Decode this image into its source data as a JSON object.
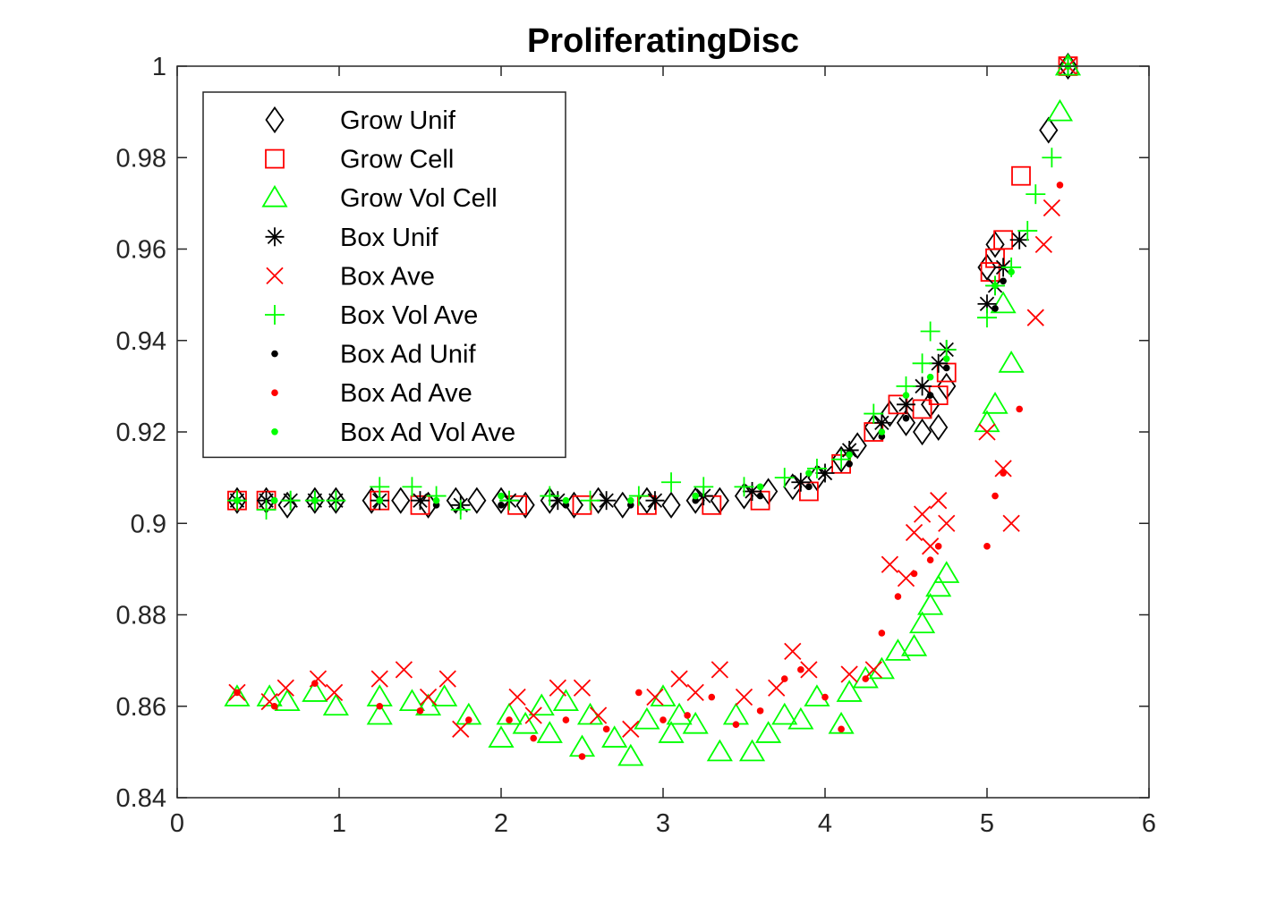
{
  "chart_data": {
    "type": "scatter",
    "title": "ProliferatingDisc",
    "xlabel": "",
    "ylabel": "",
    "xlim": [
      0,
      6
    ],
    "ylim": [
      0.84,
      1
    ],
    "xticks": [
      0,
      1,
      2,
      3,
      4,
      5,
      6
    ],
    "yticks": [
      0.84,
      0.86,
      0.88,
      0.9,
      0.92,
      0.94,
      0.96,
      0.98,
      1
    ],
    "xtick_labels": [
      "0",
      "1",
      "2",
      "3",
      "4",
      "5",
      "6"
    ],
    "ytick_labels": [
      "0.84",
      "0.86",
      "0.88",
      "0.9",
      "0.92",
      "0.94",
      "0.96",
      "0.98",
      "1"
    ],
    "grid": false,
    "legend_position": "top-left",
    "series": [
      {
        "name": "Grow Unif",
        "marker": "diamond",
        "color": "#000000",
        "points": [
          [
            0.37,
            0.905
          ],
          [
            0.55,
            0.905
          ],
          [
            0.68,
            0.904
          ],
          [
            0.85,
            0.905
          ],
          [
            0.98,
            0.905
          ],
          [
            1.2,
            0.905
          ],
          [
            1.38,
            0.905
          ],
          [
            1.55,
            0.904
          ],
          [
            1.72,
            0.905
          ],
          [
            1.85,
            0.905
          ],
          [
            2.0,
            0.905
          ],
          [
            2.15,
            0.904
          ],
          [
            2.3,
            0.905
          ],
          [
            2.45,
            0.904
          ],
          [
            2.6,
            0.905
          ],
          [
            2.75,
            0.904
          ],
          [
            2.9,
            0.905
          ],
          [
            3.05,
            0.904
          ],
          [
            3.2,
            0.905
          ],
          [
            3.35,
            0.905
          ],
          [
            3.5,
            0.906
          ],
          [
            3.65,
            0.907
          ],
          [
            3.8,
            0.908
          ],
          [
            3.95,
            0.91
          ],
          [
            4.1,
            0.914
          ],
          [
            4.2,
            0.917
          ],
          [
            4.3,
            0.921
          ],
          [
            4.4,
            0.924
          ],
          [
            4.5,
            0.922
          ],
          [
            4.6,
            0.92
          ],
          [
            4.7,
            0.921
          ],
          [
            4.65,
            0.926
          ],
          [
            4.75,
            0.93
          ],
          [
            5.0,
            0.956
          ],
          [
            5.05,
            0.961
          ],
          [
            5.38,
            0.986
          ],
          [
            5.5,
            1.0
          ]
        ]
      },
      {
        "name": "Grow Cell",
        "marker": "square",
        "color": "#ff0000",
        "points": [
          [
            0.37,
            0.905
          ],
          [
            0.55,
            0.905
          ],
          [
            1.25,
            0.905
          ],
          [
            1.5,
            0.904
          ],
          [
            2.1,
            0.904
          ],
          [
            2.5,
            0.904
          ],
          [
            2.9,
            0.904
          ],
          [
            3.3,
            0.904
          ],
          [
            3.6,
            0.905
          ],
          [
            3.9,
            0.907
          ],
          [
            4.1,
            0.913
          ],
          [
            4.3,
            0.92
          ],
          [
            4.45,
            0.926
          ],
          [
            4.6,
            0.925
          ],
          [
            4.7,
            0.928
          ],
          [
            4.75,
            0.933
          ],
          [
            5.02,
            0.955
          ],
          [
            5.05,
            0.958
          ],
          [
            5.1,
            0.962
          ],
          [
            5.21,
            0.976
          ],
          [
            5.5,
            1.0
          ]
        ]
      },
      {
        "name": "Grow Vol Cell",
        "marker": "triangle",
        "color": "#00ff00",
        "points": [
          [
            0.37,
            0.862
          ],
          [
            0.57,
            0.862
          ],
          [
            0.68,
            0.861
          ],
          [
            0.85,
            0.863
          ],
          [
            0.98,
            0.86
          ],
          [
            1.25,
            0.858
          ],
          [
            1.25,
            0.862
          ],
          [
            1.45,
            0.861
          ],
          [
            1.55,
            0.86
          ],
          [
            1.65,
            0.862
          ],
          [
            1.8,
            0.858
          ],
          [
            2.0,
            0.853
          ],
          [
            2.05,
            0.858
          ],
          [
            2.15,
            0.856
          ],
          [
            2.25,
            0.86
          ],
          [
            2.3,
            0.854
          ],
          [
            2.4,
            0.861
          ],
          [
            2.5,
            0.851
          ],
          [
            2.55,
            0.858
          ],
          [
            2.7,
            0.853
          ],
          [
            2.8,
            0.849
          ],
          [
            2.9,
            0.857
          ],
          [
            3.0,
            0.862
          ],
          [
            3.05,
            0.854
          ],
          [
            3.1,
            0.858
          ],
          [
            3.2,
            0.856
          ],
          [
            3.35,
            0.85
          ],
          [
            3.45,
            0.858
          ],
          [
            3.55,
            0.85
          ],
          [
            3.65,
            0.854
          ],
          [
            3.75,
            0.858
          ],
          [
            3.85,
            0.857
          ],
          [
            3.95,
            0.862
          ],
          [
            4.1,
            0.856
          ],
          [
            4.15,
            0.863
          ],
          [
            4.25,
            0.866
          ],
          [
            4.35,
            0.868
          ],
          [
            4.45,
            0.872
          ],
          [
            4.55,
            0.873
          ],
          [
            4.6,
            0.878
          ],
          [
            4.65,
            0.882
          ],
          [
            4.7,
            0.886
          ],
          [
            4.75,
            0.889
          ],
          [
            5.0,
            0.922
          ],
          [
            5.05,
            0.926
          ],
          [
            5.1,
            0.948
          ],
          [
            5.15,
            0.935
          ],
          [
            5.45,
            0.99
          ],
          [
            5.5,
            1.0
          ]
        ]
      },
      {
        "name": "Box Unif",
        "marker": "asterisk",
        "color": "#000000",
        "points": [
          [
            0.37,
            0.905
          ],
          [
            0.55,
            0.905
          ],
          [
            0.7,
            0.905
          ],
          [
            0.85,
            0.905
          ],
          [
            0.98,
            0.905
          ],
          [
            1.25,
            0.905
          ],
          [
            1.5,
            0.905
          ],
          [
            1.75,
            0.904
          ],
          [
            2.05,
            0.905
          ],
          [
            2.35,
            0.905
          ],
          [
            2.65,
            0.905
          ],
          [
            2.95,
            0.905
          ],
          [
            3.25,
            0.906
          ],
          [
            3.55,
            0.907
          ],
          [
            3.85,
            0.909
          ],
          [
            4.0,
            0.911
          ],
          [
            4.15,
            0.916
          ],
          [
            4.35,
            0.922
          ],
          [
            4.5,
            0.926
          ],
          [
            4.6,
            0.93
          ],
          [
            4.7,
            0.935
          ],
          [
            4.75,
            0.938
          ],
          [
            5.0,
            0.948
          ],
          [
            5.05,
            0.952
          ],
          [
            5.1,
            0.956
          ],
          [
            5.2,
            0.962
          ],
          [
            5.5,
            1.0
          ]
        ]
      },
      {
        "name": "Box Ave",
        "marker": "x",
        "color": "#ff0000",
        "points": [
          [
            0.37,
            0.863
          ],
          [
            0.57,
            0.861
          ],
          [
            0.67,
            0.864
          ],
          [
            0.87,
            0.866
          ],
          [
            0.97,
            0.863
          ],
          [
            1.25,
            0.866
          ],
          [
            1.4,
            0.868
          ],
          [
            1.55,
            0.862
          ],
          [
            1.67,
            0.866
          ],
          [
            1.75,
            0.855
          ],
          [
            2.1,
            0.862
          ],
          [
            2.2,
            0.858
          ],
          [
            2.35,
            0.864
          ],
          [
            2.5,
            0.864
          ],
          [
            2.6,
            0.858
          ],
          [
            2.8,
            0.855
          ],
          [
            2.95,
            0.862
          ],
          [
            3.1,
            0.866
          ],
          [
            3.2,
            0.863
          ],
          [
            3.35,
            0.868
          ],
          [
            3.5,
            0.862
          ],
          [
            3.7,
            0.864
          ],
          [
            3.8,
            0.872
          ],
          [
            3.9,
            0.868
          ],
          [
            4.15,
            0.867
          ],
          [
            4.3,
            0.868
          ],
          [
            4.4,
            0.891
          ],
          [
            4.5,
            0.888
          ],
          [
            4.55,
            0.898
          ],
          [
            4.6,
            0.902
          ],
          [
            4.65,
            0.895
          ],
          [
            4.7,
            0.905
          ],
          [
            4.75,
            0.9
          ],
          [
            5.0,
            0.92
          ],
          [
            5.1,
            0.912
          ],
          [
            5.15,
            0.9
          ],
          [
            5.3,
            0.945
          ],
          [
            5.35,
            0.961
          ],
          [
            5.4,
            0.969
          ],
          [
            5.5,
            1.0
          ]
        ]
      },
      {
        "name": "Box Vol Ave",
        "marker": "plus",
        "color": "#00ff00",
        "points": [
          [
            0.37,
            0.905
          ],
          [
            0.55,
            0.903
          ],
          [
            0.7,
            0.905
          ],
          [
            0.85,
            0.905
          ],
          [
            0.98,
            0.905
          ],
          [
            1.25,
            0.908
          ],
          [
            1.45,
            0.908
          ],
          [
            1.6,
            0.906
          ],
          [
            1.75,
            0.903
          ],
          [
            2.05,
            0.905
          ],
          [
            2.3,
            0.906
          ],
          [
            2.55,
            0.905
          ],
          [
            2.85,
            0.906
          ],
          [
            3.05,
            0.909
          ],
          [
            3.25,
            0.908
          ],
          [
            3.5,
            0.908
          ],
          [
            3.75,
            0.91
          ],
          [
            3.95,
            0.912
          ],
          [
            4.1,
            0.914
          ],
          [
            4.3,
            0.924
          ],
          [
            4.5,
            0.93
          ],
          [
            4.6,
            0.935
          ],
          [
            4.65,
            0.942
          ],
          [
            4.75,
            0.938
          ],
          [
            5.0,
            0.945
          ],
          [
            5.05,
            0.952
          ],
          [
            5.15,
            0.956
          ],
          [
            5.25,
            0.964
          ],
          [
            5.3,
            0.972
          ],
          [
            5.4,
            0.98
          ],
          [
            5.5,
            1.0
          ]
        ]
      },
      {
        "name": "Box Ad Unif",
        "marker": "dot",
        "color": "#000000",
        "points": [
          [
            0.37,
            0.905
          ],
          [
            0.6,
            0.905
          ],
          [
            0.85,
            0.905
          ],
          [
            1.25,
            0.905
          ],
          [
            1.6,
            0.904
          ],
          [
            2.0,
            0.904
          ],
          [
            2.4,
            0.904
          ],
          [
            2.8,
            0.904
          ],
          [
            3.2,
            0.905
          ],
          [
            3.6,
            0.906
          ],
          [
            3.9,
            0.908
          ],
          [
            4.15,
            0.913
          ],
          [
            4.35,
            0.919
          ],
          [
            4.5,
            0.923
          ],
          [
            4.65,
            0.928
          ],
          [
            4.75,
            0.934
          ],
          [
            5.05,
            0.947
          ],
          [
            5.1,
            0.953
          ],
          [
            5.5,
            1.0
          ]
        ]
      },
      {
        "name": "Box Ad Ave",
        "marker": "dot",
        "color": "#ff0000",
        "points": [
          [
            0.37,
            0.863
          ],
          [
            0.6,
            0.86
          ],
          [
            0.85,
            0.865
          ],
          [
            1.25,
            0.86
          ],
          [
            1.5,
            0.859
          ],
          [
            1.8,
            0.857
          ],
          [
            2.05,
            0.857
          ],
          [
            2.2,
            0.853
          ],
          [
            2.4,
            0.857
          ],
          [
            2.5,
            0.849
          ],
          [
            2.65,
            0.855
          ],
          [
            2.85,
            0.863
          ],
          [
            3.0,
            0.857
          ],
          [
            3.15,
            0.858
          ],
          [
            3.3,
            0.862
          ],
          [
            3.45,
            0.856
          ],
          [
            3.6,
            0.859
          ],
          [
            3.75,
            0.866
          ],
          [
            3.85,
            0.868
          ],
          [
            4.0,
            0.862
          ],
          [
            4.1,
            0.855
          ],
          [
            4.25,
            0.866
          ],
          [
            4.35,
            0.876
          ],
          [
            4.45,
            0.884
          ],
          [
            4.55,
            0.889
          ],
          [
            4.65,
            0.892
          ],
          [
            4.7,
            0.895
          ],
          [
            5.0,
            0.895
          ],
          [
            5.05,
            0.906
          ],
          [
            5.1,
            0.911
          ],
          [
            5.2,
            0.925
          ],
          [
            5.45,
            0.974
          ],
          [
            5.5,
            1.0
          ]
        ]
      },
      {
        "name": "Box Ad Vol Ave",
        "marker": "dot",
        "color": "#00ff00",
        "points": [
          [
            0.37,
            0.905
          ],
          [
            0.6,
            0.905
          ],
          [
            0.85,
            0.905
          ],
          [
            1.25,
            0.905
          ],
          [
            1.6,
            0.905
          ],
          [
            2.0,
            0.906
          ],
          [
            2.4,
            0.905
          ],
          [
            2.8,
            0.905
          ],
          [
            3.2,
            0.906
          ],
          [
            3.6,
            0.908
          ],
          [
            3.9,
            0.911
          ],
          [
            4.15,
            0.915
          ],
          [
            4.35,
            0.92
          ],
          [
            4.5,
            0.928
          ],
          [
            4.65,
            0.932
          ],
          [
            4.75,
            0.936
          ],
          [
            5.05,
            0.952
          ],
          [
            5.15,
            0.955
          ],
          [
            5.5,
            1.0
          ]
        ]
      }
    ]
  }
}
